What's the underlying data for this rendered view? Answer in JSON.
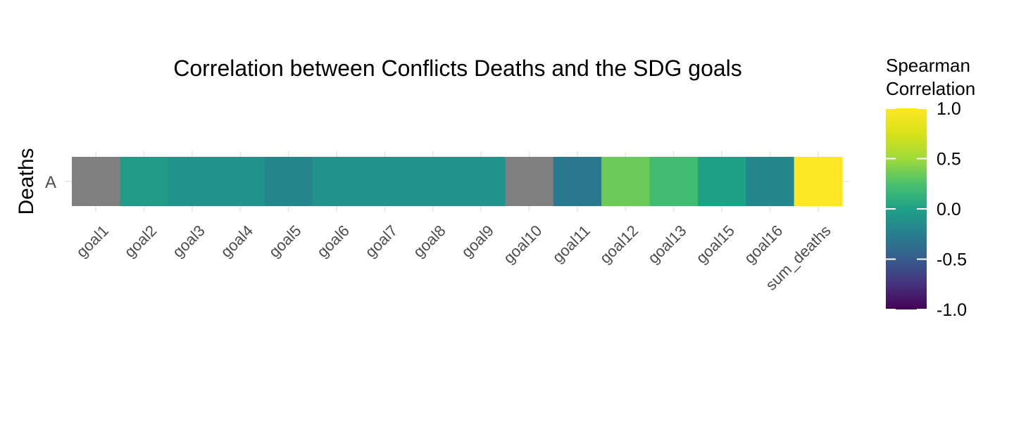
{
  "chart_data": {
    "type": "heatmap",
    "title": "Correlation between Conflicts Deaths and the SDG goals",
    "ylabel": "Deaths",
    "xlabel": "",
    "rows": [
      "A"
    ],
    "categories": [
      "goal1",
      "goal2",
      "goal3",
      "goal4",
      "goal5",
      "goal6",
      "goal7",
      "goal8",
      "goal9",
      "goal10",
      "goal11",
      "goal12",
      "goal13",
      "goal15",
      "goal16",
      "sum_deaths"
    ],
    "values": [
      null,
      -0.05,
      -0.1,
      -0.1,
      -0.2,
      -0.1,
      -0.1,
      -0.1,
      -0.1,
      null,
      -0.3,
      0.35,
      0.2,
      0.0,
      -0.2,
      1.0
    ],
    "na_color": "#808080",
    "colorscale": "viridis",
    "legend": {
      "title_lines": [
        "Spearman",
        "Correlation"
      ],
      "range": [
        -1,
        1
      ],
      "ticks": [
        "1.0",
        "0.5",
        "0.0",
        "-0.5",
        "-1.0"
      ],
      "placement": "right"
    },
    "grid": true
  }
}
